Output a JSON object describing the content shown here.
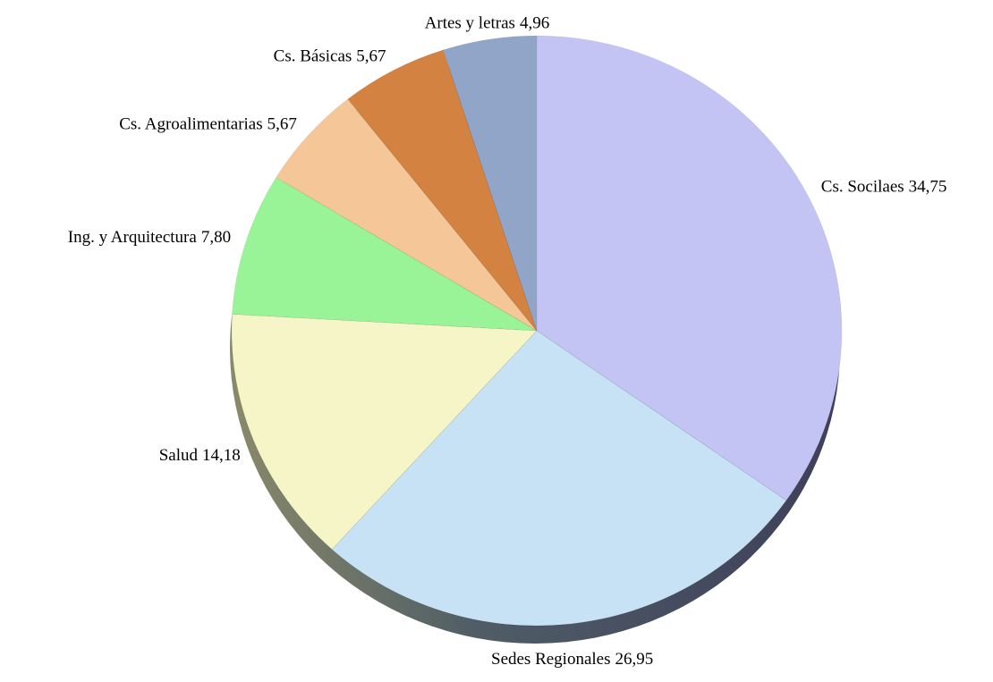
{
  "chart_data": {
    "type": "pie",
    "categories": [
      "Cs. Socilaes",
      "Sedes Regionales",
      "Salud",
      "Ing. y Arquitectura",
      "Cs. Agroalimentarias",
      "Cs. Básicas",
      "Artes y letras"
    ],
    "values": [
      34.75,
      26.95,
      14.18,
      7.8,
      5.67,
      5.67,
      4.96
    ],
    "value_labels": [
      "34,75",
      "26,95",
      "14,18",
      "7,80",
      "5,67",
      "5,67",
      "4,96"
    ],
    "colors": [
      "#c4c4f4",
      "#c6e2f4",
      "#f5f5c8",
      "#98f496",
      "#f5c698",
      "#d38241",
      "#91a5c8"
    ]
  }
}
